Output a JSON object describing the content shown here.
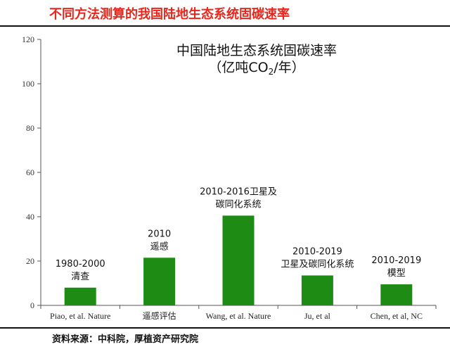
{
  "header": {
    "title": "不同方法测算的我国陆地生态系统固碳速率"
  },
  "source_note": "资料来源：中科院，厚植资产研究院",
  "chart_data": {
    "type": "bar",
    "title": "中国陆地生态系统固碳速率",
    "subtitle_parts": [
      "（亿吨CO",
      "2",
      "/年）"
    ],
    "categories": [
      "Piao, et al. Nature",
      "遥感评估",
      "Wang, et al. Nature",
      "Ju, et al",
      "Chen, et al, NC"
    ],
    "values": [
      8,
      21.5,
      40.5,
      13.5,
      9.5
    ],
    "annotations": [
      [
        "1980-2000",
        "清查"
      ],
      [
        "2010",
        "遥感"
      ],
      [
        "2010-2016卫星及",
        "碳同化系统"
      ],
      [
        "2010-2019",
        "卫星及碳同化系统"
      ],
      [
        "2010-2019",
        "模型"
      ]
    ],
    "ylim": [
      0,
      120
    ],
    "yticks": [
      0,
      20,
      40,
      60,
      80,
      100,
      120
    ],
    "bar_color": "#1e8c14",
    "grid": false,
    "legend": "none"
  }
}
